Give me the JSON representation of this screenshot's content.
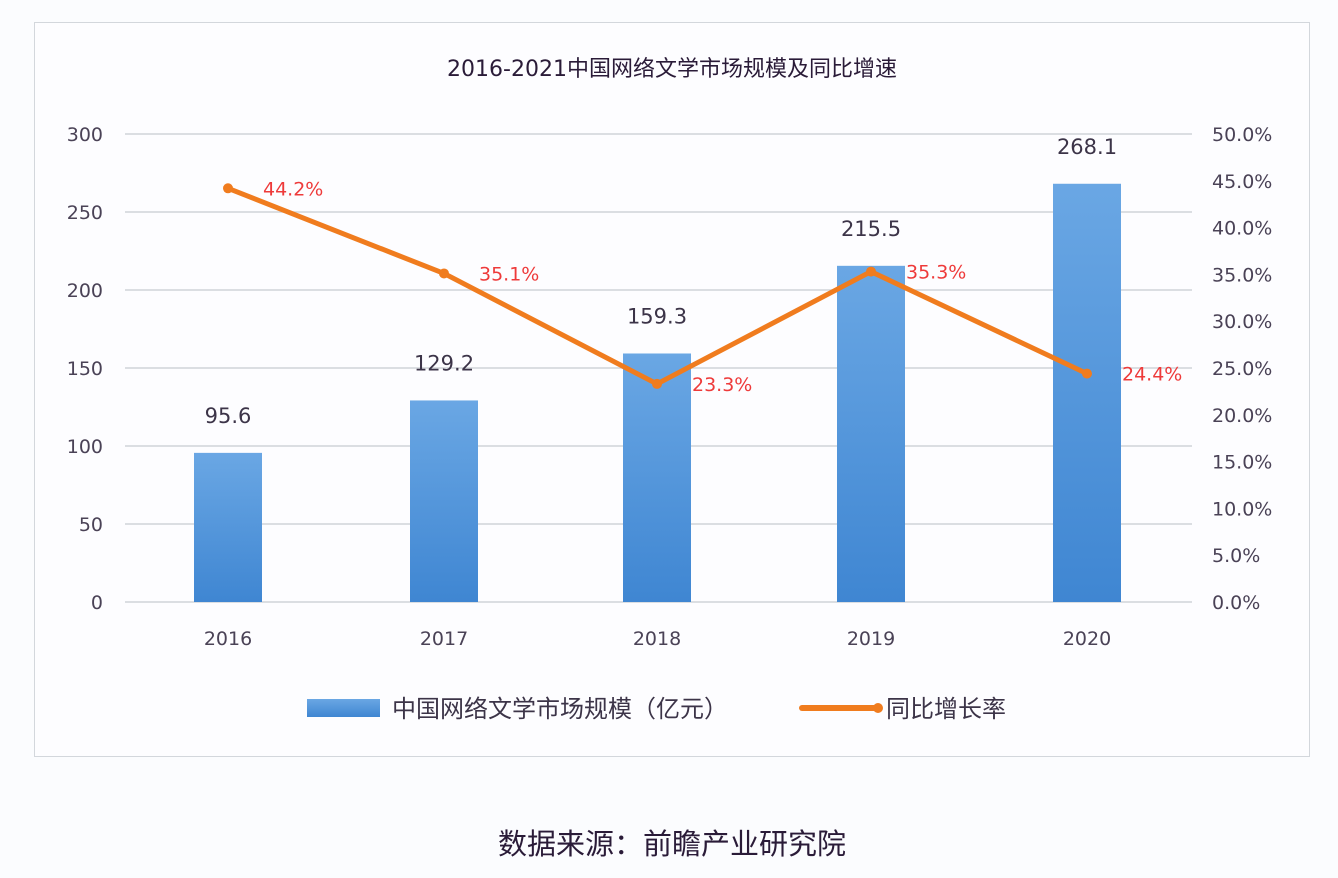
{
  "chart_data": {
    "type": "bar+line",
    "title": "2016-2021中国网络文学市场规模及同比增速",
    "categories": [
      "2016",
      "2017",
      "2018",
      "2019",
      "2020"
    ],
    "series": [
      {
        "name": "中国网络文学市场规模（亿元）",
        "type": "bar",
        "axis": "left",
        "values": [
          95.6,
          129.2,
          159.3,
          215.5,
          268.1
        ],
        "labels": [
          "95.6",
          "129.2",
          "159.3",
          "215.5",
          "268.1"
        ],
        "color": "#4a90d9"
      },
      {
        "name": "同比增长率",
        "type": "line",
        "axis": "right",
        "values": [
          44.2,
          35.1,
          23.3,
          35.3,
          24.4
        ],
        "labels": [
          "44.2%",
          "35.1%",
          "23.3%",
          "35.3%",
          "24.4%"
        ],
        "color": "#f07c1e"
      }
    ],
    "left_axis": {
      "ylim": [
        0,
        300
      ],
      "ticks": [
        "0",
        "50",
        "100",
        "150",
        "200",
        "250",
        "300"
      ]
    },
    "right_axis": {
      "ylim": [
        0,
        50
      ],
      "ticks": [
        "0.0%",
        "5.0%",
        "10.0%",
        "15.0%",
        "20.0%",
        "25.0%",
        "30.0%",
        "35.0%",
        "40.0%",
        "45.0%",
        "50.0%"
      ]
    },
    "grid": true,
    "legend": "bottom",
    "label_color": "#ee3a3a"
  },
  "source": "数据来源：前瞻产业研究院"
}
